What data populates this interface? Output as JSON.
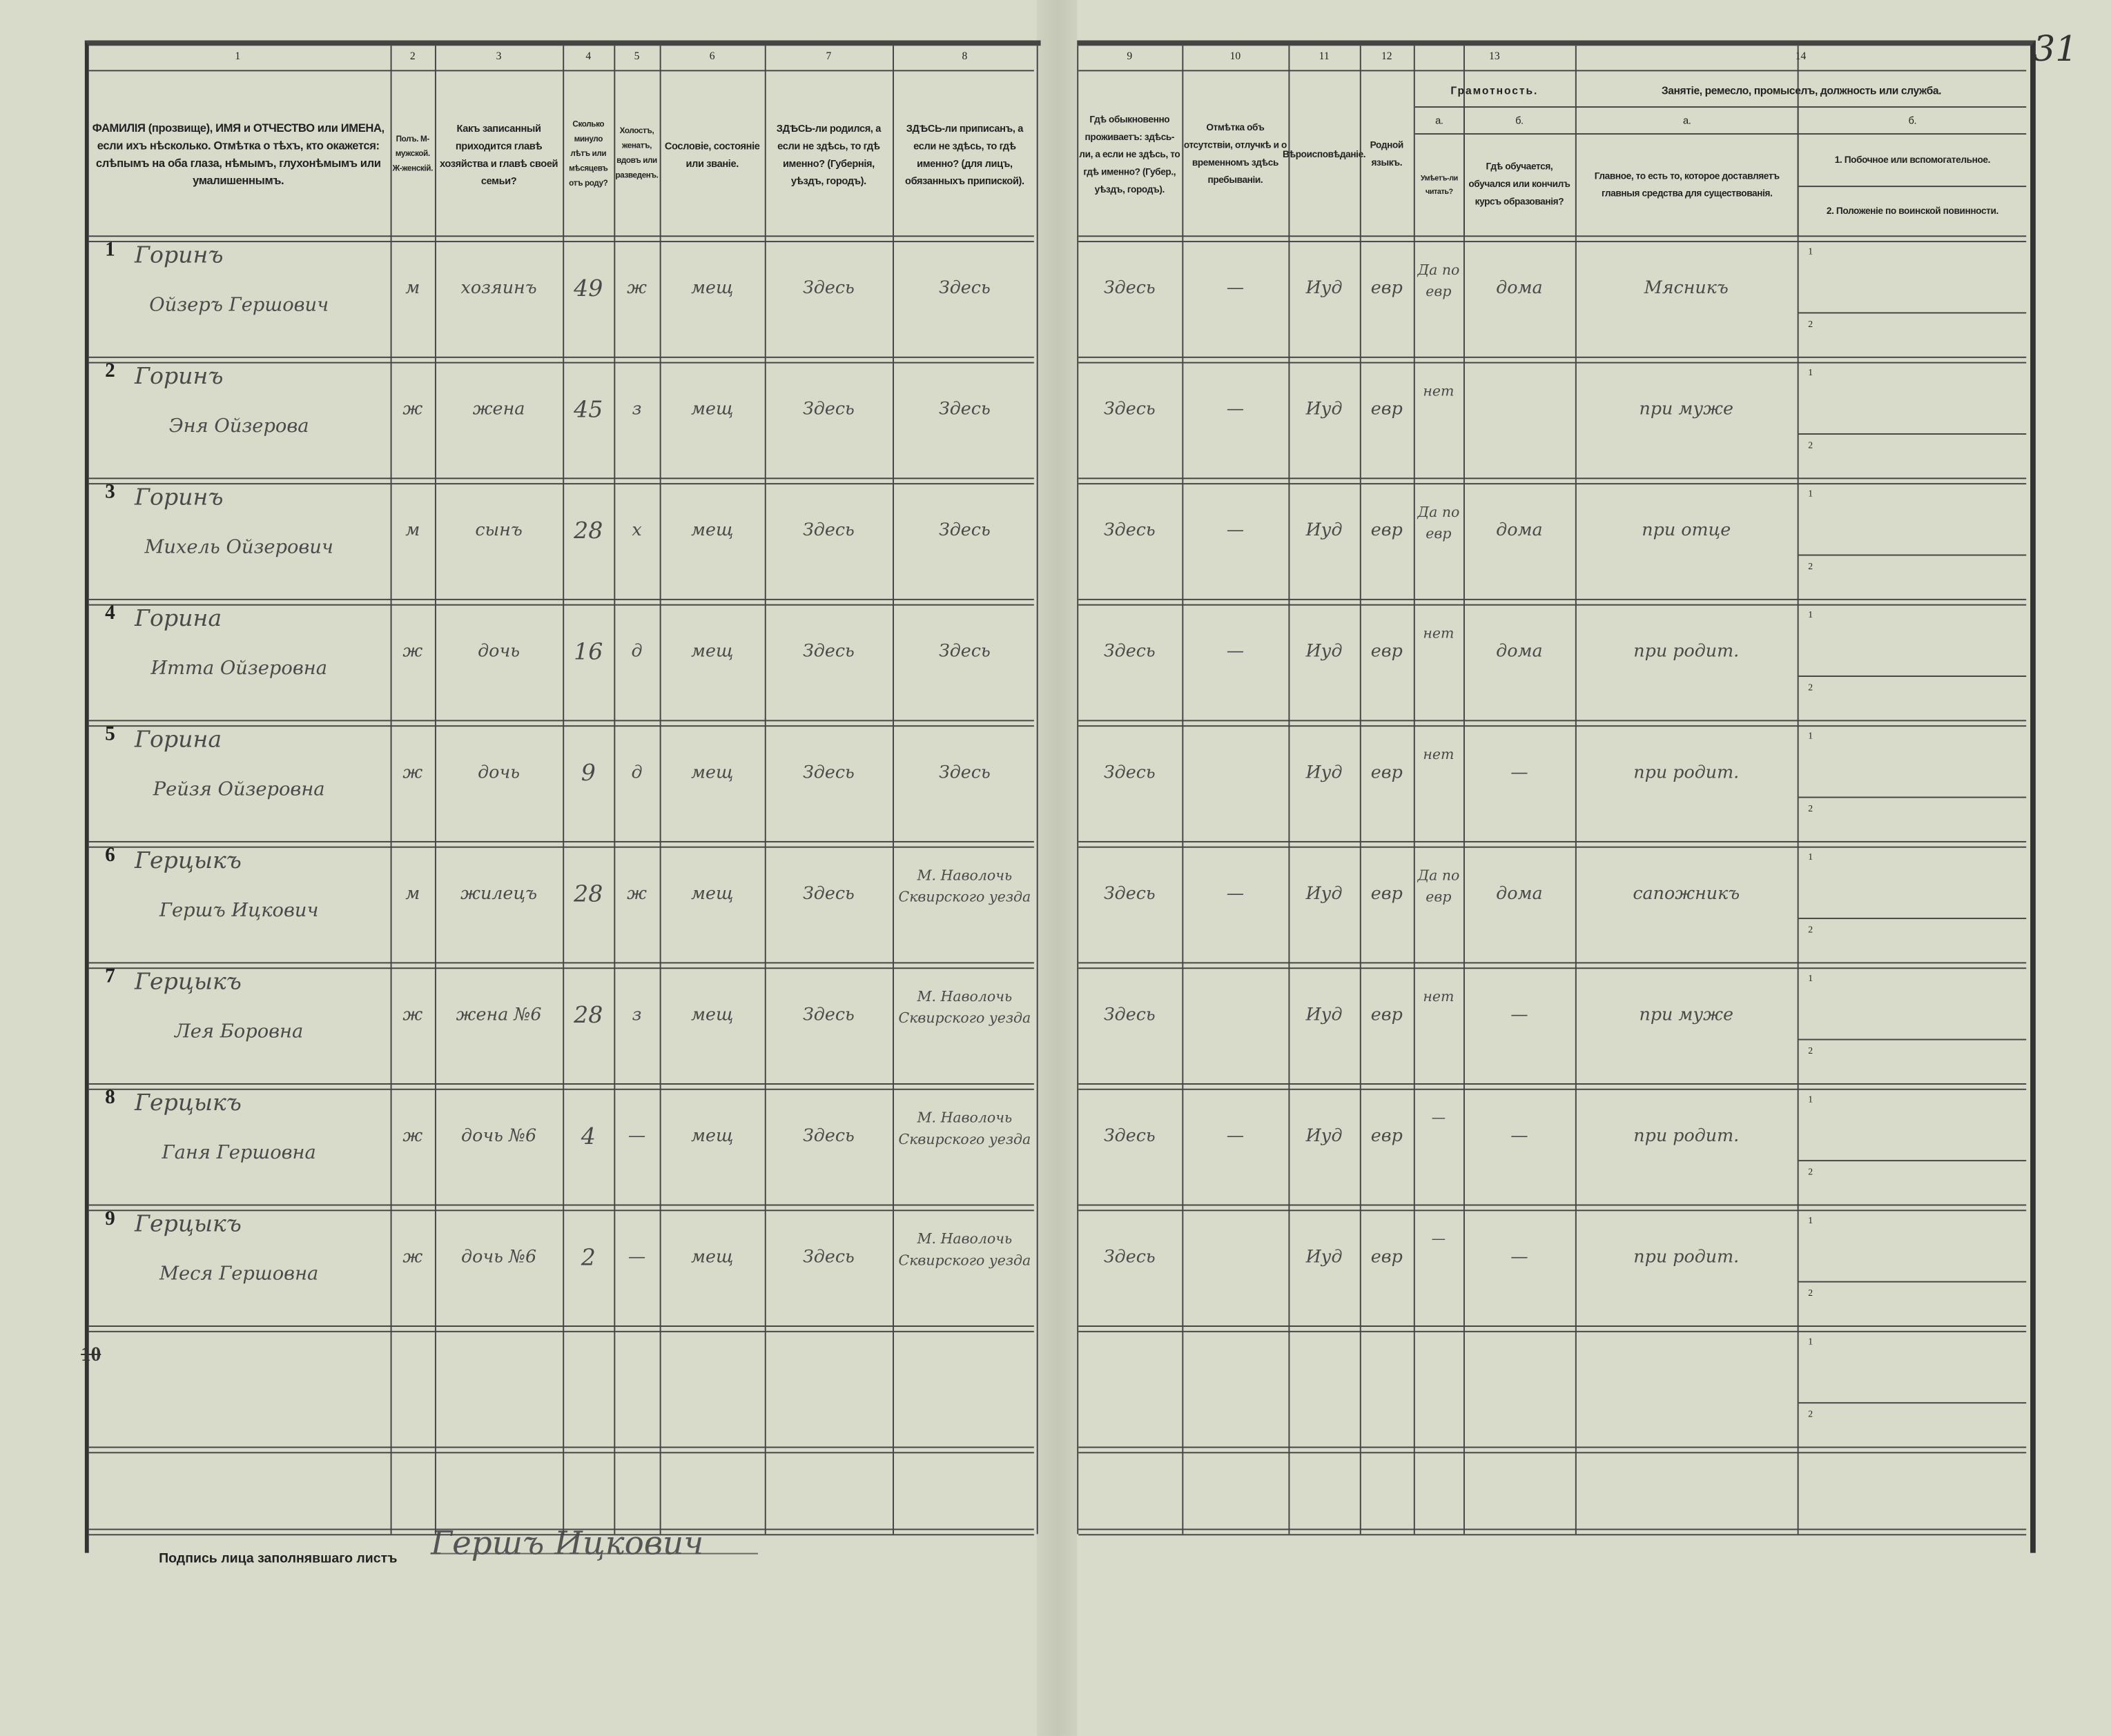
{
  "page_number": "31",
  "column_numbers": [
    "1",
    "2",
    "3",
    "4",
    "5",
    "6",
    "7",
    "8",
    "9",
    "10",
    "11",
    "12",
    "13",
    "14"
  ],
  "headers": {
    "c1": "ФАМИЛІЯ (прозвище), ИМЯ и ОТЧЕСТВО или ИМЕНА, если ихъ нѣсколько. Отмѣтка о тѣхъ, кто окажется: слѣпымъ на оба глаза, нѣмымъ, глухонѣмымъ или умалишеннымъ.",
    "c2": "Полъ. М-мужской. Ж-женскій.",
    "c3": "Какъ записанный приходится главѣ хозяйства и главѣ своей семьи?",
    "c4": "Сколько минуло лѣтъ или мѣсяцевъ отъ роду?",
    "c5": "Холостъ, женатъ, вдовъ или разведенъ.",
    "c6": "Сословіе, состояніе или званіе.",
    "c7": "ЗДѢСЬ-ли родился, а если не здѣсь, то гдѣ именно? (Губернія, уѣздъ, городъ).",
    "c8": "ЗДѢСЬ-ли приписанъ, а если не здѣсь, то гдѣ именно? (для лицъ, обязанныхъ припиской).",
    "c9": "Гдѣ обыкновенно проживаетъ: здѣсь-ли, а если не здѣсь, то гдѣ именно? (Губер., уѣздъ, городъ).",
    "c10": "Отмѣтка объ отсутствіи, отлучкѣ и о временномъ здѣсь пребываніи.",
    "c11": "Вѣроисповѣданіе.",
    "c12": "Родной языкъ.",
    "c13": "Грамотность.",
    "c13a_letter": "а.",
    "c13a": "Умѣетъ-ли читать?",
    "c13b_letter": "б.",
    "c13b": "Гдѣ обучается, обучался или кончилъ курсъ образованія?",
    "c14": "Занятіе, ремесло, промыселъ, должность или служба.",
    "c14a_letter": "а.",
    "c14a": "Главное, то есть то, которое доставляетъ главныя средства для существованія.",
    "c14b_letter": "б.",
    "c14b1": "1. Побочное или вспомогательное.",
    "c14b2": "2. Положеніе по воинской повинности."
  },
  "rows": [
    {
      "n": "1",
      "surname": "Горинъ",
      "name": "Ойзеръ Гершович",
      "sex": "м",
      "relation": "хозяинъ",
      "age": "49",
      "marital": "ж",
      "estate": "мещ",
      "born": "Здесь",
      "registered": "Здесь",
      "resides": "Здесь",
      "absence": "—",
      "religion": "Иуд",
      "language": "евр",
      "literate": "Да по евр",
      "education": "дома",
      "occupation": "Мясникъ"
    },
    {
      "n": "2",
      "surname": "Горинъ",
      "name": "Эня Ойзерова",
      "sex": "ж",
      "relation": "жена",
      "age": "45",
      "marital": "з",
      "estate": "мещ",
      "born": "Здесь",
      "registered": "Здесь",
      "resides": "Здесь",
      "absence": "—",
      "religion": "Иуд",
      "language": "евр",
      "literate": "нет",
      "education": "",
      "occupation": "при муже"
    },
    {
      "n": "3",
      "surname": "Горинъ",
      "name": "Михель Ойзерович",
      "sex": "м",
      "relation": "сынъ",
      "age": "28",
      "marital": "х",
      "estate": "мещ",
      "born": "Здесь",
      "registered": "Здесь",
      "resides": "Здесь",
      "absence": "—",
      "religion": "Иуд",
      "language": "евр",
      "literate": "Да по евр",
      "education": "дома",
      "occupation": "при отце"
    },
    {
      "n": "4",
      "surname": "Горина",
      "name": "Итта Ойзеровна",
      "sex": "ж",
      "relation": "дочь",
      "age": "16",
      "marital": "д",
      "estate": "мещ",
      "born": "Здесь",
      "registered": "Здесь",
      "resides": "Здесь",
      "absence": "—",
      "religion": "Иуд",
      "language": "евр",
      "literate": "нет",
      "education": "дома",
      "occupation": "при родит."
    },
    {
      "n": "5",
      "surname": "Горина",
      "name": "Рейзя Ойзеровна",
      "sex": "ж",
      "relation": "дочь",
      "age": "9",
      "marital": "д",
      "estate": "мещ",
      "born": "Здесь",
      "registered": "Здесь",
      "resides": "Здесь",
      "absence": "",
      "religion": "Иуд",
      "language": "евр",
      "literate": "нет",
      "education": "—",
      "occupation": "при родит."
    },
    {
      "n": "6",
      "surname": "Герцыкъ",
      "name": "Гершъ Ицкович",
      "sex": "м",
      "relation": "жилецъ",
      "age": "28",
      "marital": "ж",
      "estate": "мещ",
      "born": "Здесь",
      "registered": "М. Наволочь Сквирского уезда",
      "resides": "Здесь",
      "absence": "—",
      "religion": "Иуд",
      "language": "евр",
      "literate": "Да по евр",
      "education": "дома",
      "occupation": "сапожникъ"
    },
    {
      "n": "7",
      "surname": "Герцыкъ",
      "name": "Лея Боровна",
      "sex": "ж",
      "relation": "жена №6",
      "age": "28",
      "marital": "з",
      "estate": "мещ",
      "born": "Здесь",
      "registered": "М. Наволочь Сквирского уезда",
      "resides": "Здесь",
      "absence": "",
      "religion": "Иуд",
      "language": "евр",
      "literate": "нет",
      "education": "—",
      "occupation": "при муже"
    },
    {
      "n": "8",
      "surname": "Герцыкъ",
      "name": "Ганя Гершовна",
      "sex": "ж",
      "relation": "дочь №6",
      "age": "4",
      "marital": "—",
      "estate": "мещ",
      "born": "Здесь",
      "registered": "М. Наволочь Сквирского уезда",
      "resides": "Здесь",
      "absence": "—",
      "religion": "Иуд",
      "language": "евр",
      "literate": "—",
      "education": "—",
      "occupation": "при родит."
    },
    {
      "n": "9",
      "surname": "Герцыкъ",
      "name": "Меся Гершовна",
      "sex": "ж",
      "relation": "дочь №6",
      "age": "2",
      "marital": "—",
      "estate": "мещ",
      "born": "Здесь",
      "registered": "М. Наволочь Сквирского уезда",
      "resides": "Здесь",
      "absence": "",
      "religion": "Иуд",
      "language": "евр",
      "literate": "—",
      "education": "—",
      "occupation": "при родит."
    }
  ],
  "struck_row_number": "10",
  "sub_row_labels": [
    "1",
    "2"
  ],
  "signature": {
    "label": "Подпись лица заполнявшаго листъ",
    "value": "Гершъ Ицкович"
  }
}
